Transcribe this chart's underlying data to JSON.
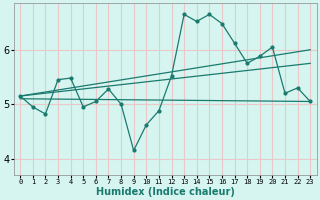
{
  "xlabel": "Humidex (Indice chaleur)",
  "ylabel": "",
  "bg_color": "#d6f5f0",
  "grid_color": "#e8c8c8",
  "line_color": "#1a7a6e",
  "xlim": [
    -0.5,
    23.5
  ],
  "ylim": [
    3.7,
    6.85
  ],
  "yticks": [
    4,
    5,
    6
  ],
  "xticks": [
    0,
    1,
    2,
    3,
    4,
    5,
    6,
    7,
    8,
    9,
    10,
    11,
    12,
    13,
    14,
    15,
    16,
    17,
    18,
    19,
    20,
    21,
    22,
    23
  ],
  "series_main": [
    [
      0,
      5.15
    ],
    [
      1,
      4.95
    ],
    [
      2,
      4.82
    ],
    [
      3,
      5.45
    ],
    [
      4,
      5.48
    ],
    [
      5,
      4.95
    ],
    [
      6,
      5.05
    ],
    [
      7,
      5.28
    ],
    [
      8,
      5.0
    ],
    [
      9,
      4.15
    ],
    [
      10,
      4.62
    ],
    [
      11,
      4.88
    ],
    [
      12,
      5.52
    ],
    [
      13,
      6.65
    ],
    [
      14,
      6.52
    ],
    [
      15,
      6.65
    ],
    [
      16,
      6.48
    ],
    [
      17,
      6.12
    ],
    [
      18,
      5.75
    ],
    [
      19,
      5.88
    ],
    [
      20,
      6.05
    ],
    [
      21,
      5.2
    ],
    [
      22,
      5.3
    ],
    [
      23,
      5.05
    ]
  ],
  "series_upper": [
    [
      0,
      5.15
    ],
    [
      23,
      6.0
    ]
  ],
  "series_mid": [
    [
      0,
      5.15
    ],
    [
      23,
      5.75
    ]
  ],
  "series_lower": [
    [
      0,
      5.1
    ],
    [
      23,
      5.05
    ]
  ]
}
